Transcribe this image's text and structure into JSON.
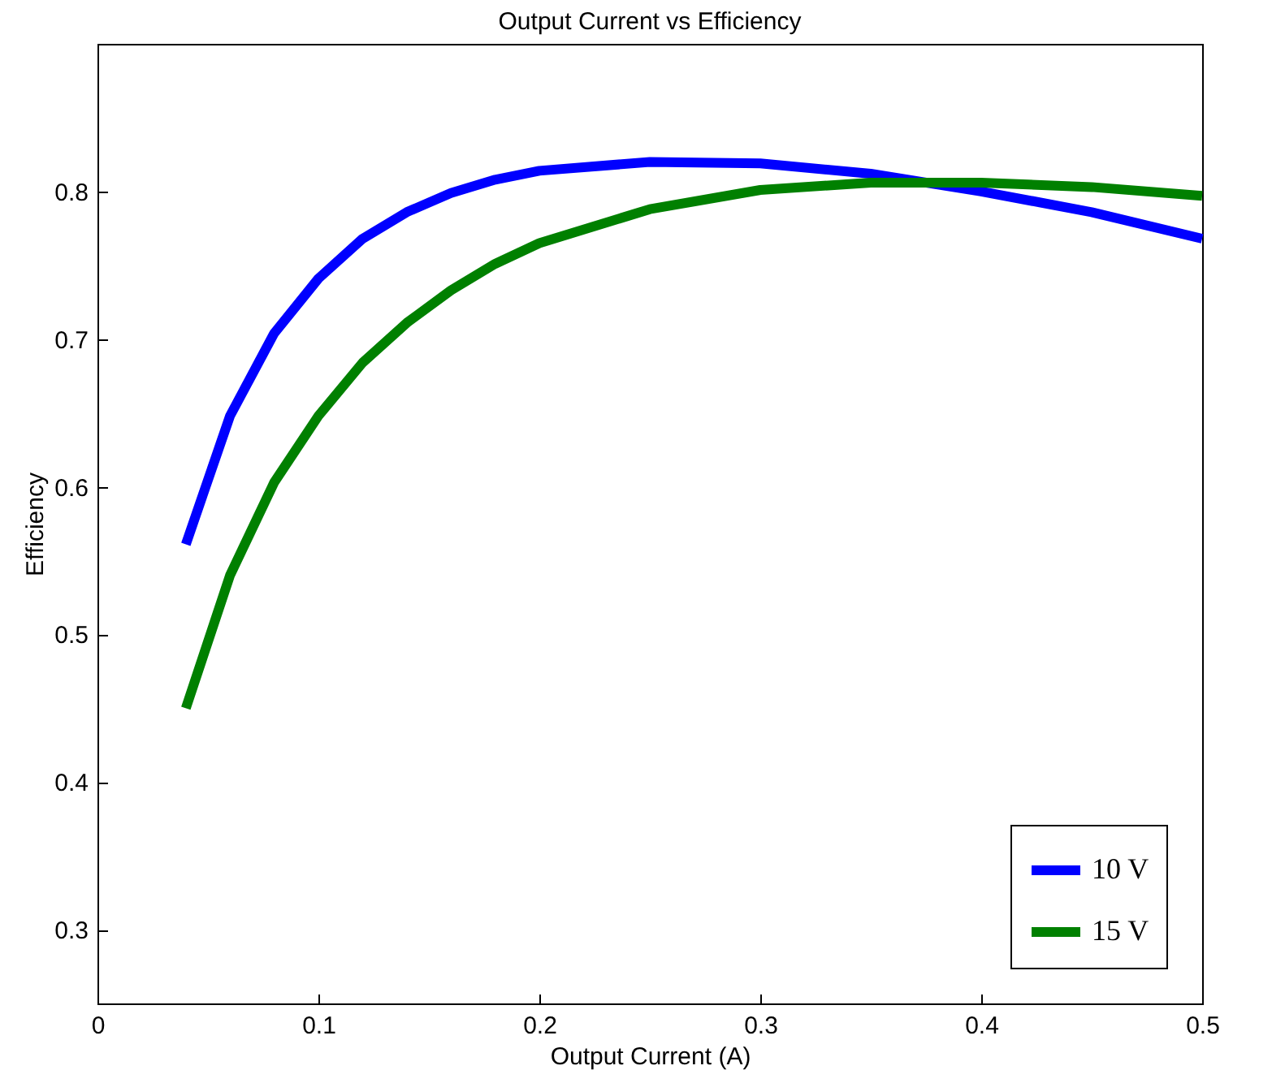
{
  "chart_data": {
    "type": "line",
    "title": "Output Current vs Efficiency",
    "xlabel": "Output Current (A)",
    "ylabel": "Efficiency",
    "x": [
      0.04,
      0.06,
      0.08,
      0.1,
      0.12,
      0.14,
      0.16,
      0.18,
      0.2,
      0.25,
      0.3,
      0.35,
      0.4,
      0.45,
      0.5
    ],
    "series": [
      {
        "name": "10 V",
        "color": "#0000ff",
        "values": [
          0.561,
          0.648,
          0.704,
          0.741,
          0.768,
          0.786,
          0.799,
          0.808,
          0.814,
          0.82,
          0.819,
          0.812,
          0.8,
          0.786,
          0.768
        ]
      },
      {
        "name": "15 V",
        "color": "#008000",
        "values": [
          0.45,
          0.54,
          0.603,
          0.648,
          0.684,
          0.711,
          0.733,
          0.751,
          0.765,
          0.788,
          0.801,
          0.806,
          0.806,
          0.803,
          0.797
        ]
      }
    ],
    "xlim": [
      0,
      0.5
    ],
    "xticks": [
      0,
      0.1,
      0.2,
      0.3,
      0.4,
      0.5
    ],
    "ylim": [
      0.25,
      0.9
    ],
    "yticks": [
      0.3,
      0.4,
      0.5,
      0.6,
      0.7,
      0.8
    ],
    "grid": false,
    "legend": "bottom right",
    "marker": "none",
    "line_style": "solid"
  }
}
